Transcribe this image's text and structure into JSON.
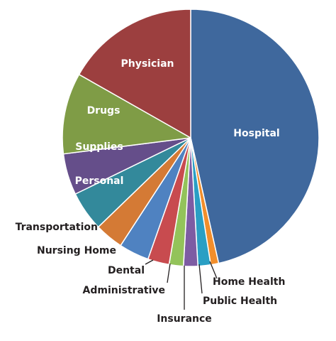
{
  "chart_data": {
    "type": "pie",
    "title": "",
    "legend": "none",
    "slices": [
      {
        "label": "Hospital",
        "value": 46.5,
        "color": "#3f689d",
        "label_style": "inside"
      },
      {
        "label": "Home Health",
        "value": 1.0,
        "color": "#f28e2b",
        "label_style": "outside"
      },
      {
        "label": "Public Health",
        "value": 1.6,
        "color": "#2a9fc4",
        "label_style": "outside"
      },
      {
        "label": "Insurance",
        "value": 1.8,
        "color": "#7d5ca3",
        "label_style": "outside"
      },
      {
        "label": "Administrative",
        "value": 1.8,
        "color": "#93c35a",
        "label_style": "outside"
      },
      {
        "label": "Dental",
        "value": 2.7,
        "color": "#c84b4f",
        "label_style": "outside"
      },
      {
        "label": "Nursing Home",
        "value": 3.8,
        "color": "#4f82c1",
        "label_style": "outside"
      },
      {
        "label": "Transportation",
        "value": 3.6,
        "color": "#d47a35",
        "label_style": "outside"
      },
      {
        "label": "Personal",
        "value": 5.0,
        "color": "#33899b",
        "label_style": "inside"
      },
      {
        "label": "Supplies",
        "value": 5.2,
        "color": "#654e8a",
        "label_style": "inside"
      },
      {
        "label": "Drugs",
        "value": 10.2,
        "color": "#7f9c46",
        "label_style": "inside"
      },
      {
        "label": "Physician",
        "value": 16.8,
        "color": "#9c3f3f",
        "label_style": "inside"
      }
    ]
  }
}
